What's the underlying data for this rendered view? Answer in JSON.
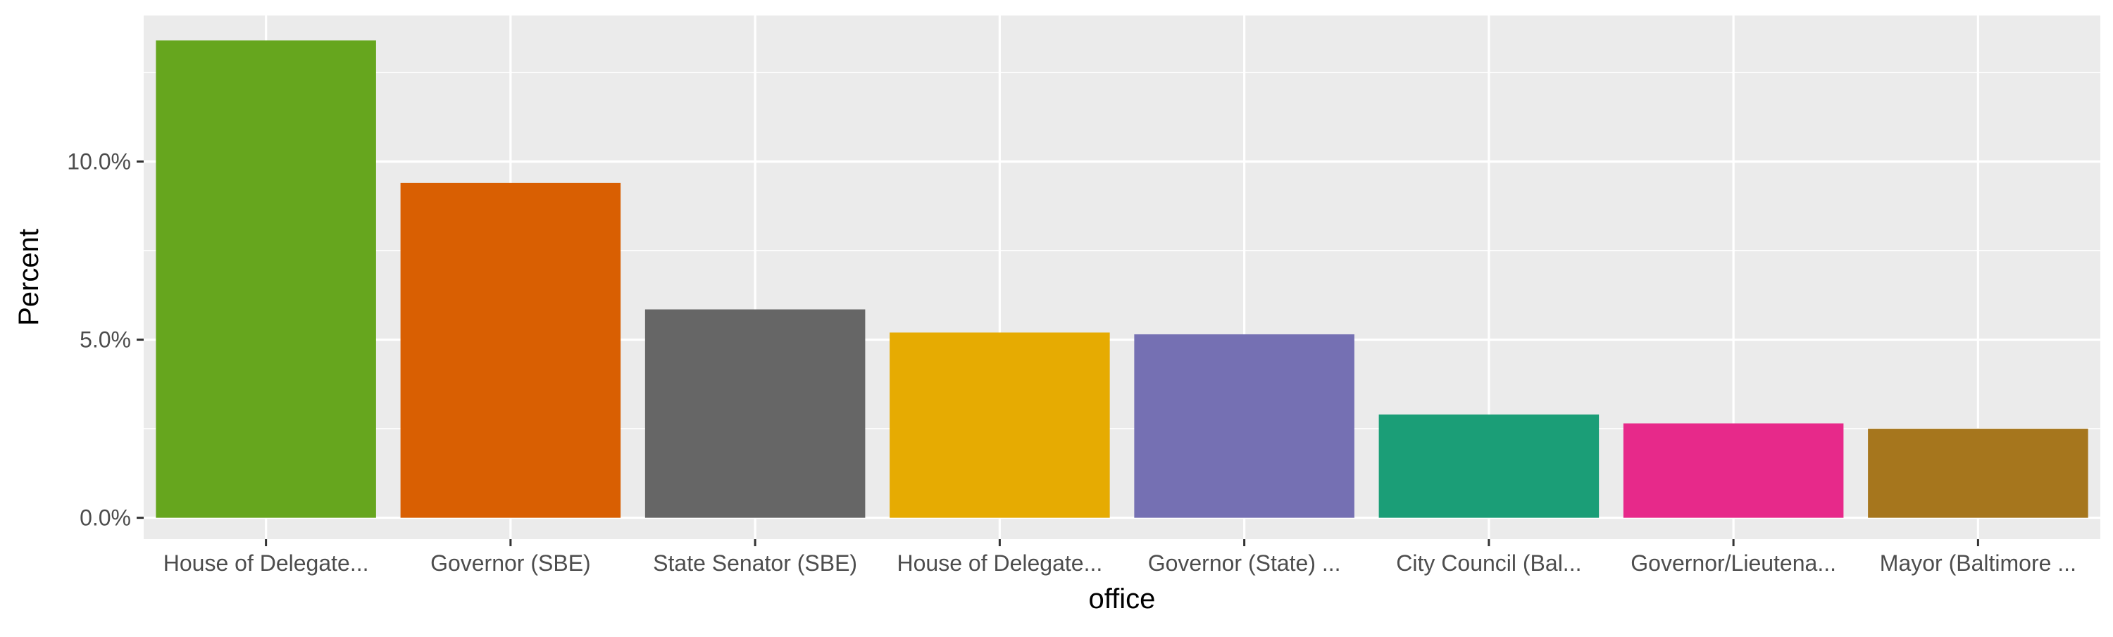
{
  "chart_data": {
    "type": "bar",
    "title": "",
    "xlabel": "office",
    "ylabel": "Percent",
    "categories": [
      "House of Delegate...",
      "Governor (SBE)",
      "State Senator (SBE)",
      "House of Delegate...",
      "Governor (State) ...",
      "City Council (Bal...",
      "Governor/Lieutena...",
      "Mayor (Baltimore ..."
    ],
    "values": [
      13.4,
      9.4,
      5.85,
      5.2,
      5.15,
      2.9,
      2.65,
      2.5
    ],
    "colors": [
      "#66a61e",
      "#d95f02",
      "#666666",
      "#e6ab02",
      "#7570b3",
      "#1b9e77",
      "#e7298a",
      "#a6761d"
    ],
    "ylim": [
      -0.6,
      14.1
    ],
    "y_ticks": [
      0,
      5,
      10
    ],
    "y_tick_labels": [
      "0.0%",
      "5.0%",
      "10.0%"
    ],
    "grid": true,
    "legend": "none",
    "panel_background": "#ebebeb",
    "grid_color": "#ffffff"
  }
}
